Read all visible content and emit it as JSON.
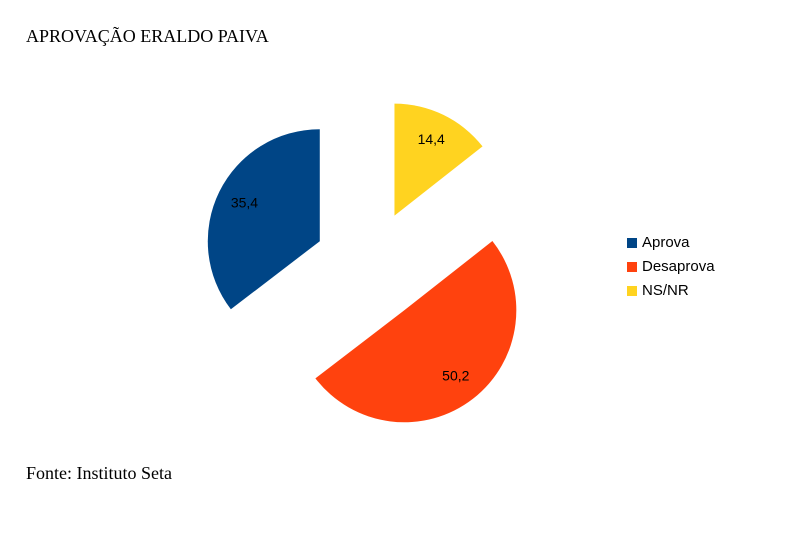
{
  "chart_data": {
    "type": "pie",
    "title": "APROVAÇÃO ERALDO PAIVA",
    "categories": [
      "Aprova",
      "Desaprova",
      "NS/NR"
    ],
    "values": [
      35.4,
      50.2,
      14.4
    ],
    "value_labels": [
      "35,4",
      "50,2",
      "14,4"
    ],
    "colors": [
      "#004586",
      "#ff420e",
      "#ffd320"
    ],
    "legend": "right",
    "source": "Fonte: Instituto Seta"
  }
}
